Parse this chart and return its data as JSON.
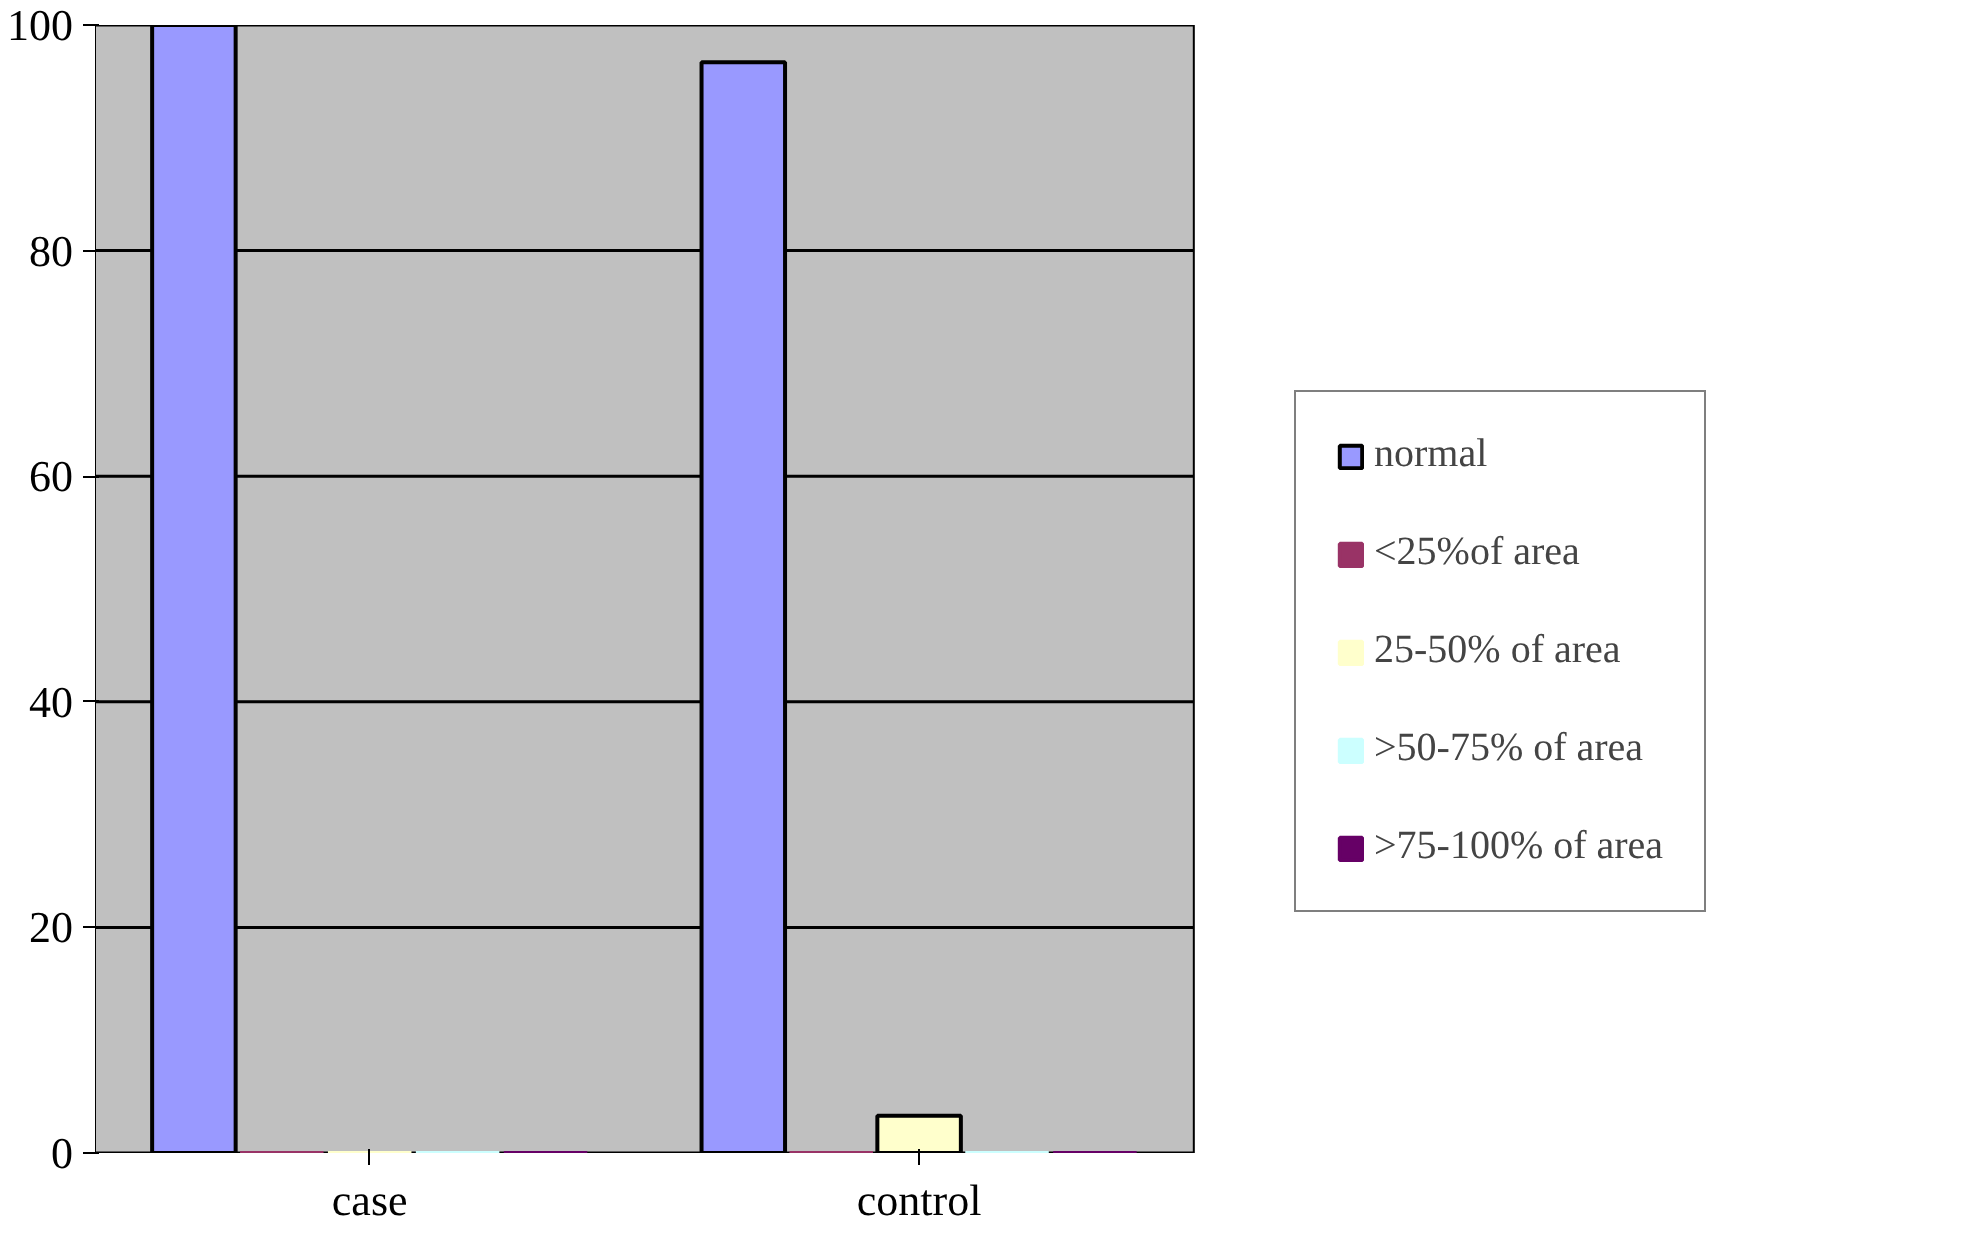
{
  "chart_data": {
    "type": "bar",
    "categories": [
      "case",
      "control"
    ],
    "series": [
      {
        "name": "normal",
        "color": "#9999ff",
        "values": [
          100,
          96.7
        ]
      },
      {
        "name": "<25%of area",
        "color": "#993366",
        "values": [
          0,
          0
        ]
      },
      {
        "name": "25-50% of area",
        "color": "#ffffcc",
        "values": [
          0,
          3.3
        ]
      },
      {
        "name": ">50-75% of area",
        "color": "#ccffff",
        "values": [
          0,
          0
        ]
      },
      {
        "name": ">75-100% of area",
        "color": "#660066",
        "values": [
          0,
          0
        ]
      }
    ],
    "ylim": [
      0,
      100
    ],
    "yticks": [
      0,
      20,
      40,
      60,
      80,
      100
    ],
    "grid": "y",
    "legend": "right"
  }
}
